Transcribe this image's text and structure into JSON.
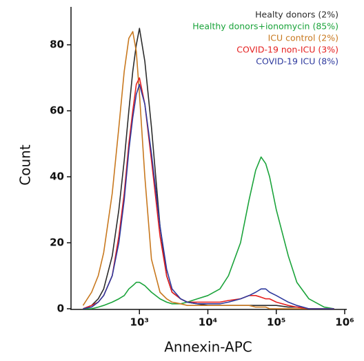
{
  "chart_data": {
    "type": "line",
    "xlabel": "Annexin-APC",
    "ylabel": "Count",
    "xscale": "log",
    "xlim": [
      100,
      1000000
    ],
    "ylim": [
      0,
      91.5
    ],
    "xticks": [
      {
        "value": 1000,
        "label": "10³"
      },
      {
        "value": 10000,
        "label": "10⁴"
      },
      {
        "value": 100000,
        "label": "10⁵"
      },
      {
        "value": 1000000,
        "label": "10⁶"
      }
    ],
    "yticks": [
      0,
      20,
      40,
      60,
      80
    ],
    "legend": "top-right",
    "x": [
      150,
      200,
      250,
      300,
      400,
      500,
      600,
      700,
      800,
      900,
      1000,
      1200,
      1500,
      2000,
      2500,
      3000,
      4000,
      5000,
      7000,
      10000,
      15000,
      20000,
      30000,
      40000,
      50000,
      60000,
      70000,
      80000,
      100000,
      150000,
      200000,
      300000,
      500000,
      700000
    ],
    "series": [
      {
        "name": "Healty donors (2%)",
        "color": "#2b2b2b",
        "values": [
          0,
          1,
          3,
          6,
          16,
          30,
          45,
          60,
          72,
          80,
          85,
          75,
          55,
          25,
          10,
          5,
          3,
          2,
          1.5,
          1,
          1,
          1,
          1,
          1,
          1,
          1,
          1,
          1,
          1,
          0.5,
          0.5,
          0,
          0,
          0
        ]
      },
      {
        "name": "Healthy donors+ionomycin (85%)",
        "color": "#1aa33a",
        "values": [
          0,
          0,
          0.5,
          1,
          2,
          3,
          4,
          6,
          7,
          8,
          8,
          7,
          5,
          3,
          2,
          1.5,
          1.5,
          2,
          3,
          4,
          6,
          10,
          20,
          33,
          42,
          46,
          44,
          40,
          30,
          16,
          8,
          3,
          0.5,
          0
        ]
      },
      {
        "name": "ICU control (2%)",
        "color": "#c8781e",
        "values": [
          1,
          5,
          10,
          17,
          35,
          55,
          72,
          82,
          84,
          78,
          65,
          40,
          15,
          5,
          3,
          2,
          1.5,
          1,
          1,
          1,
          1,
          1,
          1,
          1,
          0.5,
          0.5,
          0.5,
          0,
          0,
          0,
          0,
          0,
          0,
          0
        ]
      },
      {
        "name": "COVID-19 non-ICU (3%)",
        "color": "#e52020",
        "values": [
          0,
          1,
          2,
          4,
          10,
          22,
          35,
          50,
          60,
          68,
          70,
          62,
          45,
          22,
          10,
          5,
          3,
          2,
          2,
          2,
          2,
          2.5,
          3,
          4,
          4,
          3.5,
          3,
          3,
          2,
          1,
          0.5,
          0,
          0,
          0
        ]
      },
      {
        "name": "COVID-19 ICU (8%)",
        "color": "#2e3a9e",
        "values": [
          0,
          0.5,
          2,
          4,
          10,
          20,
          33,
          48,
          58,
          65,
          68,
          62,
          47,
          25,
          12,
          6,
          3,
          2,
          1.5,
          1.5,
          1.5,
          2,
          3,
          4,
          5,
          6,
          6,
          5,
          4,
          2,
          1,
          0,
          0,
          0
        ]
      }
    ]
  }
}
